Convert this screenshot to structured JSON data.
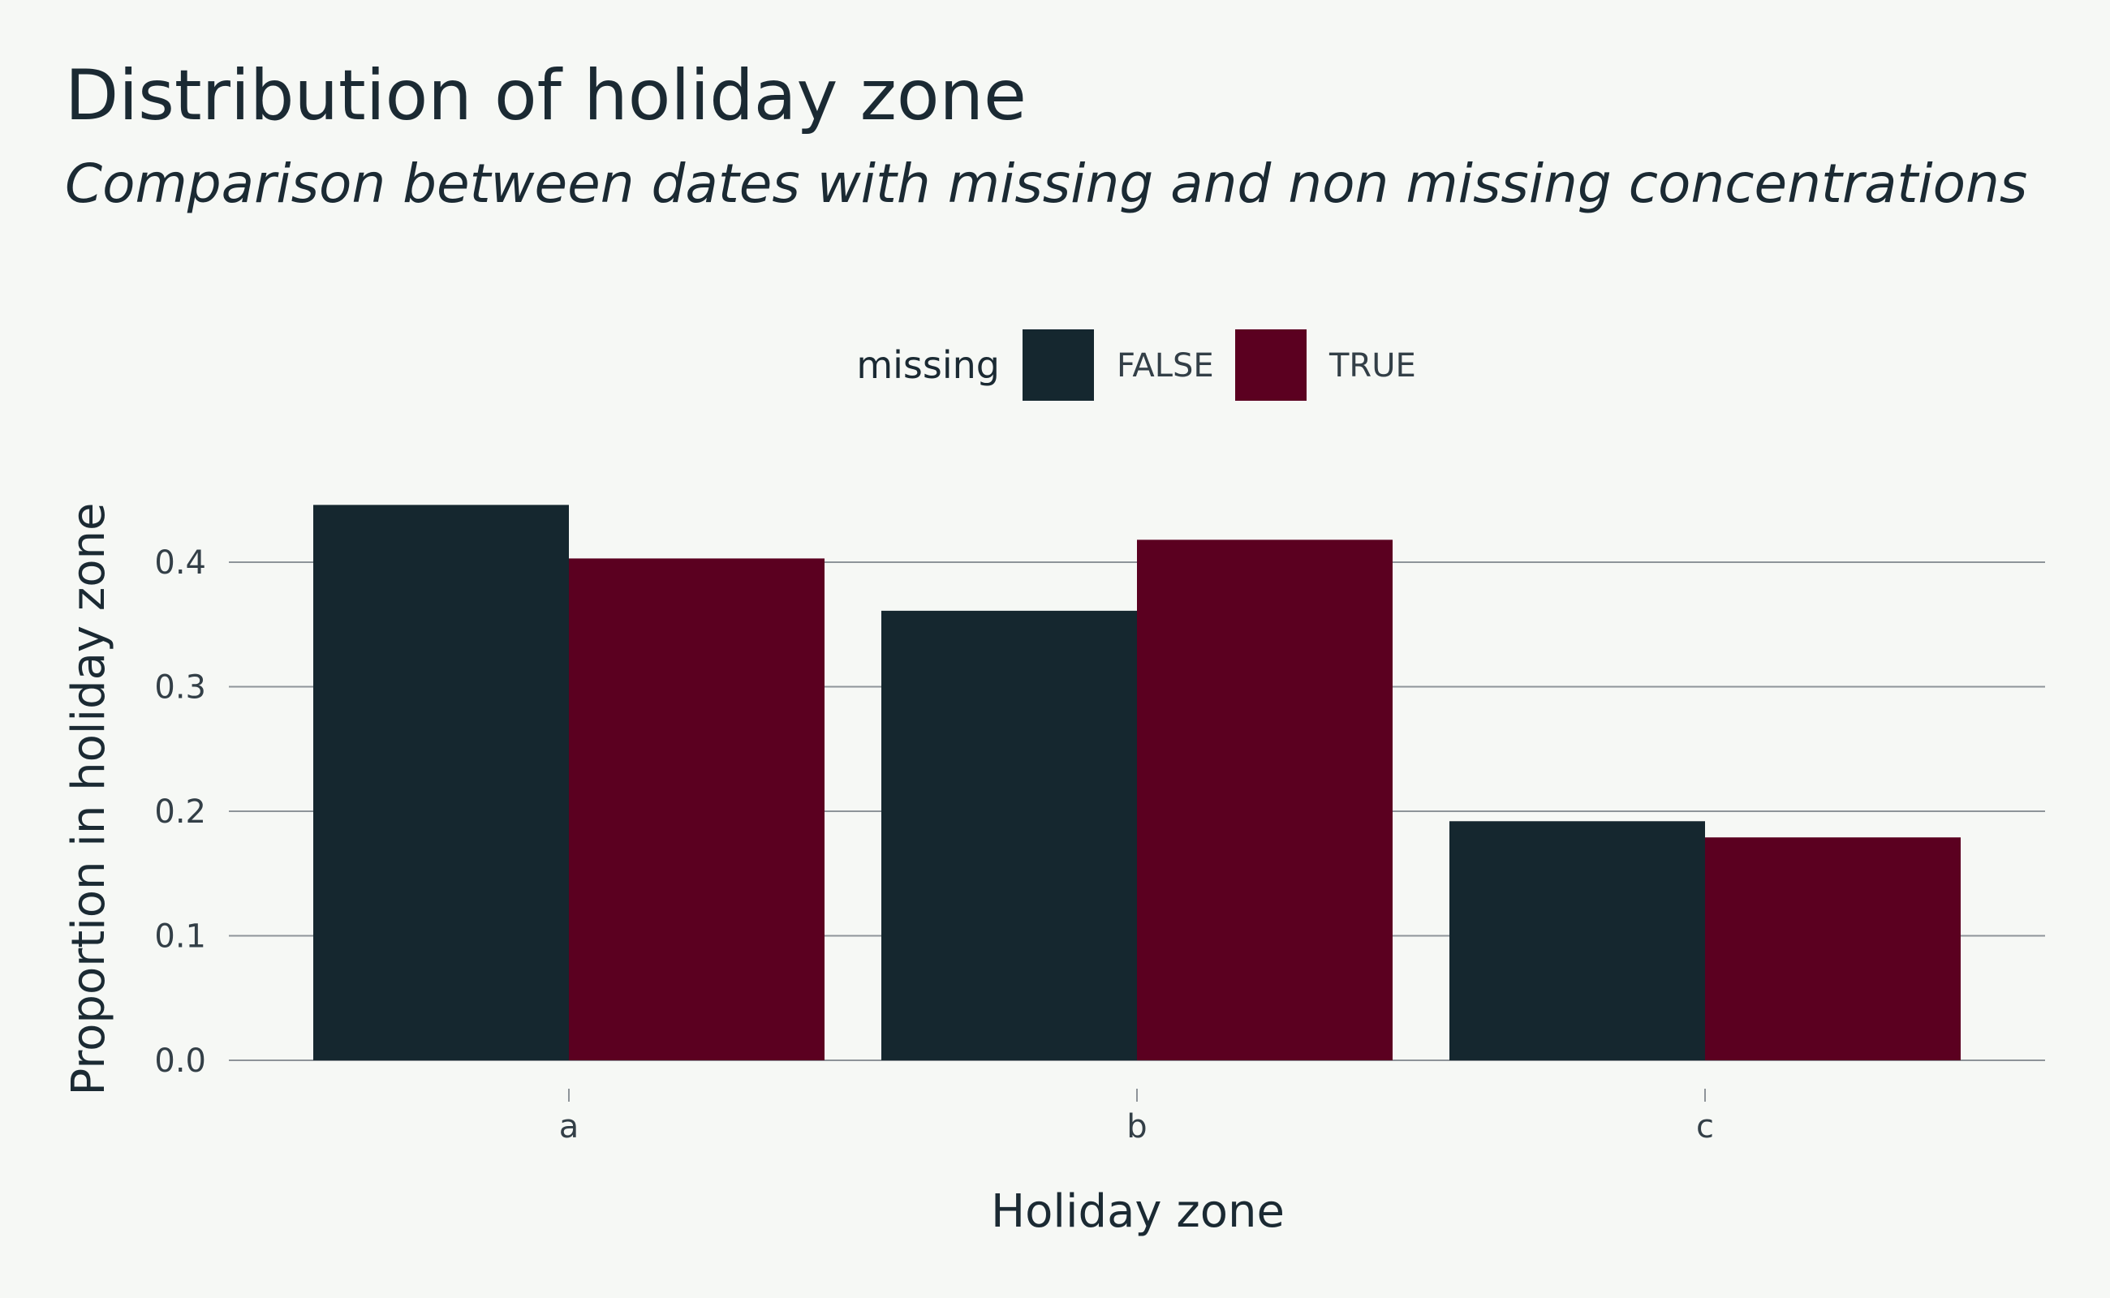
{
  "chart_data": {
    "type": "bar",
    "title": "Distribution of holiday zone",
    "subtitle": "Comparison between dates with missing and non missing concentrations",
    "xlabel": "Holiday zone",
    "ylabel": "Proportion in holiday zone",
    "categories": [
      "a",
      "b",
      "c"
    ],
    "series": [
      {
        "name": "FALSE",
        "values": [
          0.446,
          0.361,
          0.192
        ],
        "color": "#15272f"
      },
      {
        "name": "TRUE",
        "values": [
          0.403,
          0.418,
          0.179
        ],
        "color": "#5b0020"
      }
    ],
    "ylim": [
      0,
      0.46
    ],
    "yticks": [
      0.0,
      0.1,
      0.2,
      0.3,
      0.4
    ],
    "ytick_labels": [
      "0.0",
      "0.1",
      "0.2",
      "0.3",
      "0.4"
    ],
    "grid": true,
    "legend": {
      "title": "missing",
      "position": "top"
    }
  }
}
